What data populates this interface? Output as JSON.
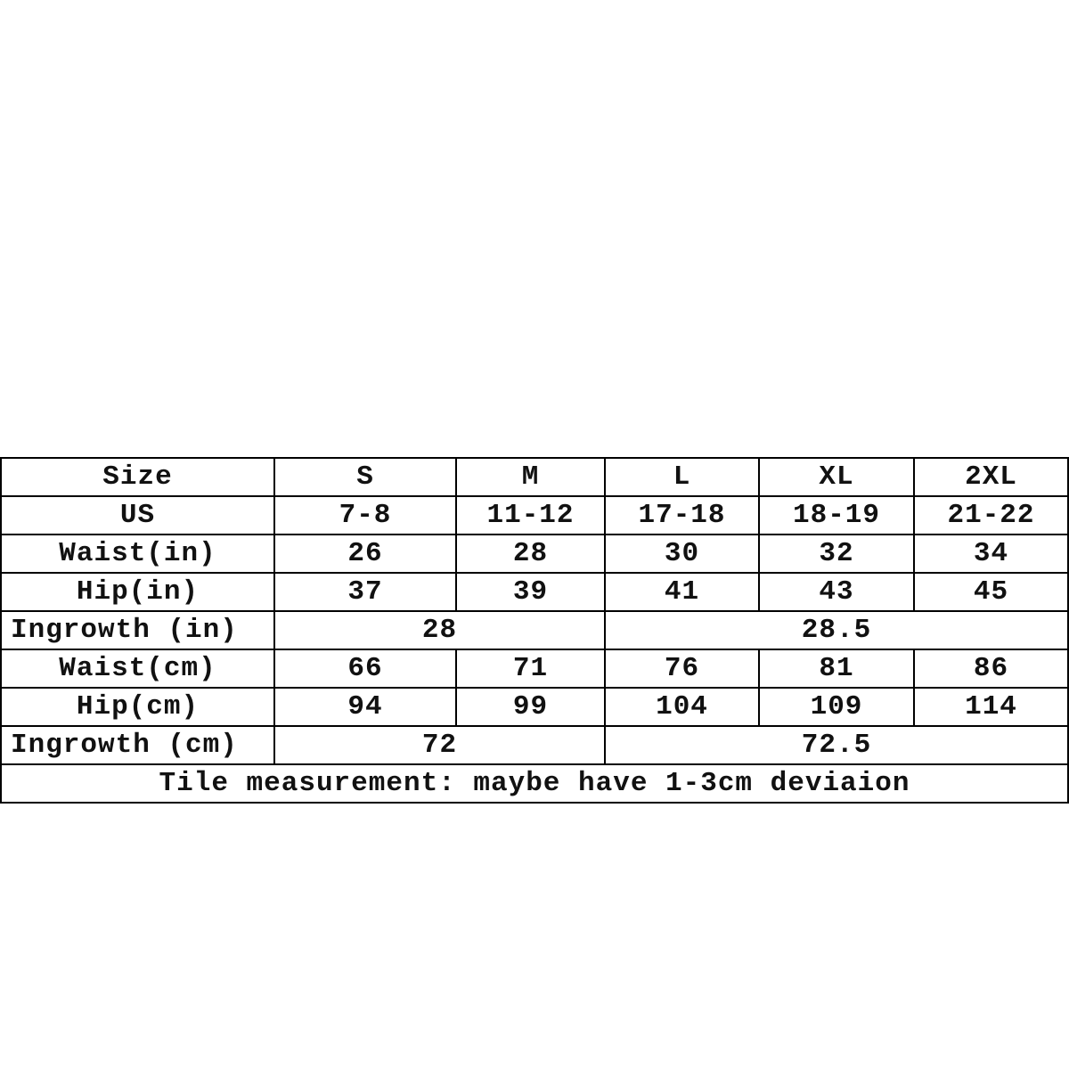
{
  "table": {
    "header": [
      "Size",
      "S",
      "M",
      "L",
      "XL",
      "2XL"
    ],
    "rows": [
      [
        "US",
        "7-8",
        "11-12",
        "17-18",
        "18-19",
        "21-22"
      ],
      [
        "Waist(in)",
        "26",
        "28",
        "30",
        "32",
        "34"
      ],
      [
        "Hip(in)",
        "37",
        "39",
        "41",
        "43",
        "45"
      ],
      [
        "Ingrowth (in)",
        "28",
        "28.5"
      ],
      [
        "Waist(cm)",
        "66",
        "71",
        "76",
        "81",
        "86"
      ],
      [
        "Hip(cm)",
        "94",
        "99",
        "104",
        "109",
        "114"
      ],
      [
        "Ingrowth (cm)",
        "72",
        "72.5"
      ]
    ],
    "note": "Tile measurement: maybe have 1-3cm deviaion"
  }
}
